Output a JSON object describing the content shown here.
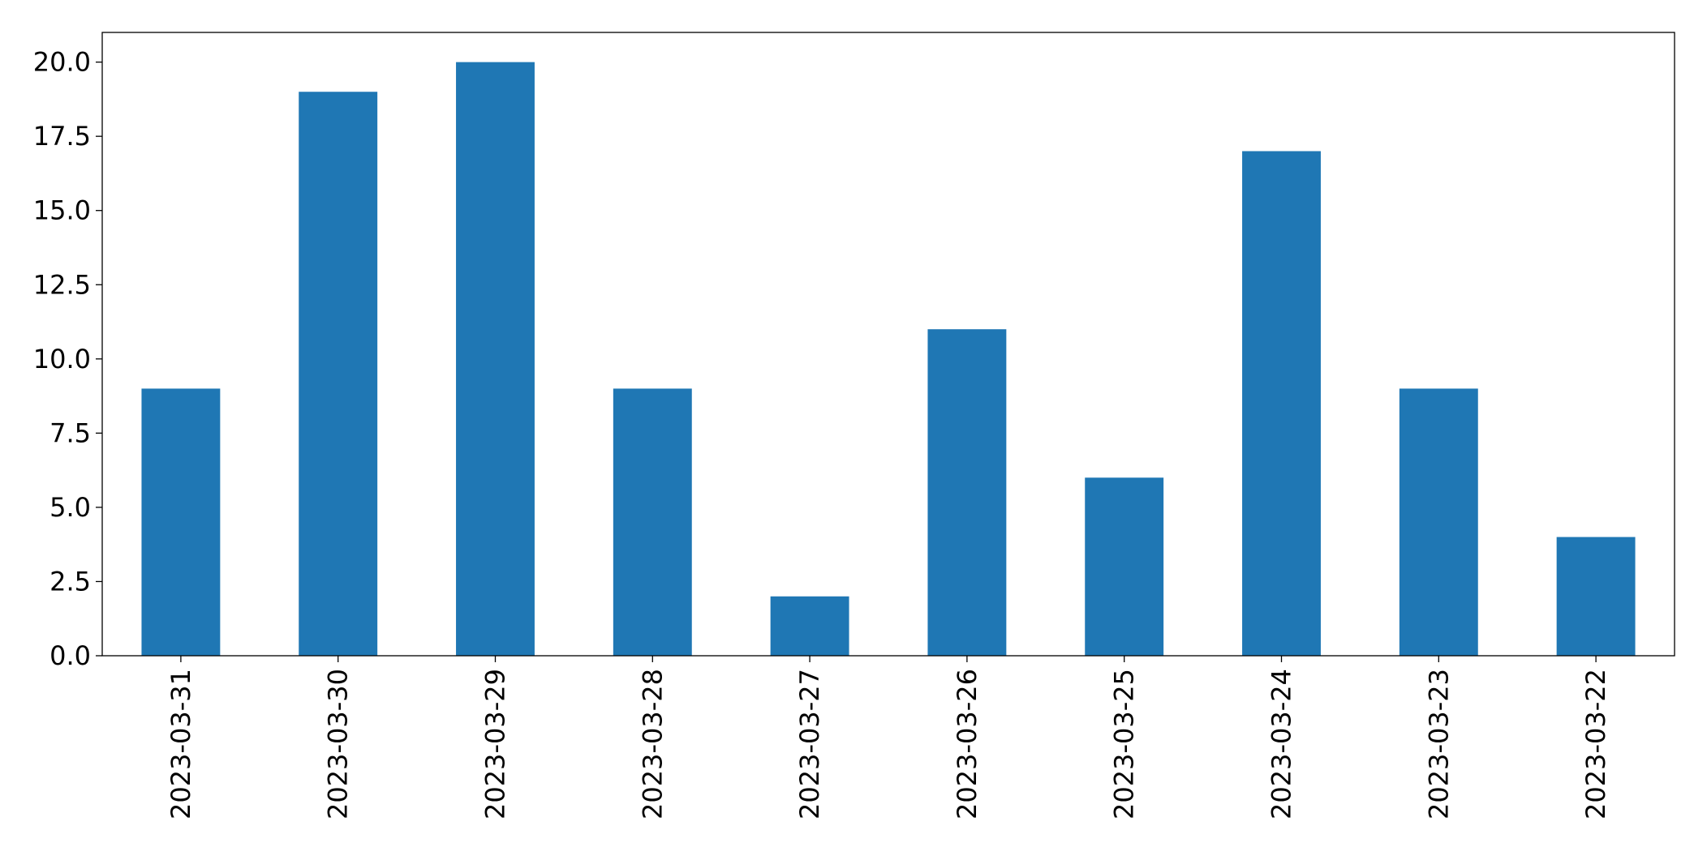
{
  "chart_data": {
    "type": "bar",
    "categories": [
      "2023-03-31",
      "2023-03-30",
      "2023-03-29",
      "2023-03-28",
      "2023-03-27",
      "2023-03-26",
      "2023-03-25",
      "2023-03-24",
      "2023-03-23",
      "2023-03-22"
    ],
    "values": [
      9,
      19,
      20,
      9,
      2,
      11,
      6,
      17,
      9,
      4
    ],
    "color": "#1f77b4",
    "ylim": [
      0,
      21
    ],
    "yticks": [
      {
        "value": 0,
        "label": "0.0"
      },
      2.5,
      {
        "value": 5,
        "label": "5.0"
      },
      7.5,
      {
        "value": 10,
        "label": "10.0"
      },
      12.5,
      {
        "value": 15,
        "label": "15.0"
      },
      17.5,
      {
        "value": 20,
        "label": "20.0"
      }
    ],
    "grid": false
  }
}
